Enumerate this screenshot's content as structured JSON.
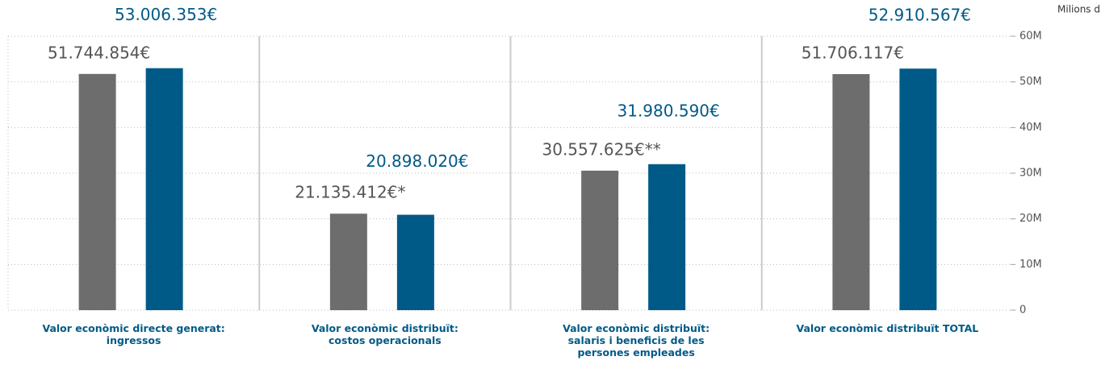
{
  "chart_data": {
    "type": "bar",
    "y_axis_label": "Milions d’euros",
    "categories": [
      "Valor econòmic directe generat: ingressos",
      "Valor econòmic distribuït: costos operacionals",
      "Valor econòmic distribuït: salaris i beneficis de les persones empleades",
      "Valor econòmic distribuït TOTAL"
    ],
    "series": [
      {
        "color": "#6d6d6d",
        "values": [
          51744854,
          21135412,
          30557625,
          51706117
        ],
        "value_labels": [
          "51.744.854€",
          "21.135.412€*",
          "30.557.625€**",
          "51.706.117€"
        ]
      },
      {
        "color": "#005a87",
        "values": [
          53006353,
          20898020,
          31980590,
          52910567
        ],
        "value_labels": [
          "53.006.353€",
          "20.898.020€",
          "31.980.590€",
          "52.910.567€"
        ]
      }
    ],
    "ylim": [
      0,
      60000000
    ],
    "yticks": [
      0,
      {
        "value": 10000000,
        "label": "10M"
      },
      {
        "value": 20000000,
        "label": "20M"
      },
      {
        "value": 30000000,
        "label": "30M"
      },
      {
        "value": 40000000,
        "label": "40M"
      },
      {
        "value": 50000000,
        "label": "50M"
      },
      {
        "value": 60000000,
        "label": "60M"
      }
    ],
    "grid": true
  }
}
